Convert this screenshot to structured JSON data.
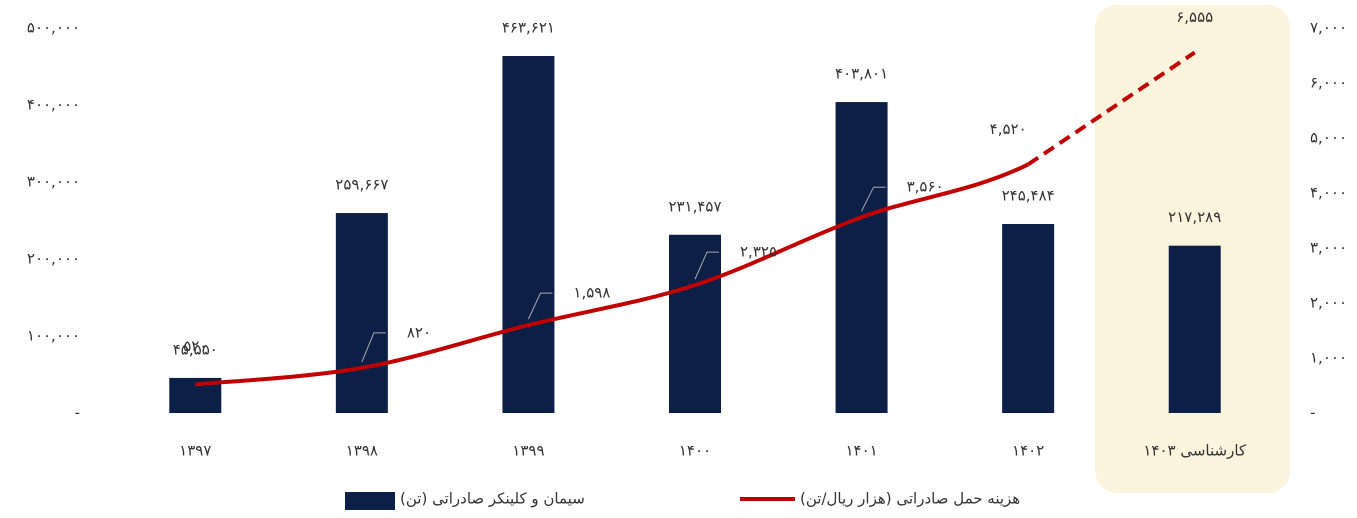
{
  "chart_data": {
    "type": "bar_line",
    "categories": [
      "۱۳۹۷",
      "۱۳۹۸",
      "۱۳۹۹",
      "۱۴۰۰",
      "۱۴۰۱",
      "۱۴۰۲",
      "کارشناسی ۱۴۰۳"
    ],
    "series": [
      {
        "name": "سیمان و کلینکر صادراتی (تن)",
        "color": "#0c1f47",
        "type": "bar",
        "values": [
          45550,
          259667,
          463621,
          231457,
          403801,
          245484,
          217289
        ],
        "value_labels": [
          "۴۵,۵۵۰",
          "۲۵۹,۶۶۷",
          "۴۶۳,۶۲۱",
          "۲۳۱,۴۵۷",
          "۴۰۳,۸۰۱",
          "۲۴۵,۴۸۴",
          "۲۱۷,۲۸۹"
        ]
      },
      {
        "name": "هزینه حمل صادراتی (هزار ریال/تن)",
        "color": "#c00000",
        "type": "line",
        "axis": "y2",
        "values": [
          520,
          820,
          1598,
          2325,
          3560,
          4520,
          6555
        ],
        "value_labels": [
          "۵۲۰",
          "۸۲۰",
          "۱,۵۹۸",
          "۲,۳۲۵",
          "۳,۵۶۰",
          "۴,۵۲۰",
          "۶,۵۵۵"
        ]
      }
    ],
    "ylim": [
      0,
      500000
    ],
    "yticks": [
      {
        "value": 0,
        "label": "-"
      },
      {
        "value": 100000,
        "label": "۱۰۰,۰۰۰"
      },
      {
        "value": 200000,
        "label": "۲۰۰,۰۰۰"
      },
      {
        "value": 300000,
        "label": "۳۰۰,۰۰۰"
      },
      {
        "value": 400000,
        "label": "۴۰۰,۰۰۰"
      },
      {
        "value": 500000,
        "label": "۵۰۰,۰۰۰"
      }
    ],
    "y2lim": [
      0,
      7000
    ],
    "y2ticks": [
      {
        "value": 0,
        "label": "-"
      },
      {
        "value": 1000,
        "label": "۱,۰۰۰"
      },
      {
        "value": 2000,
        "label": "۲,۰۰۰"
      },
      {
        "value": 3000,
        "label": "۳,۰۰۰"
      },
      {
        "value": 4000,
        "label": "۴,۰۰۰"
      },
      {
        "value": 5000,
        "label": "۵,۰۰۰"
      },
      {
        "value": 6000,
        "label": "۶,۰۰۰"
      },
      {
        "value": 7000,
        "label": "۷,۰۰۰"
      }
    ]
  }
}
